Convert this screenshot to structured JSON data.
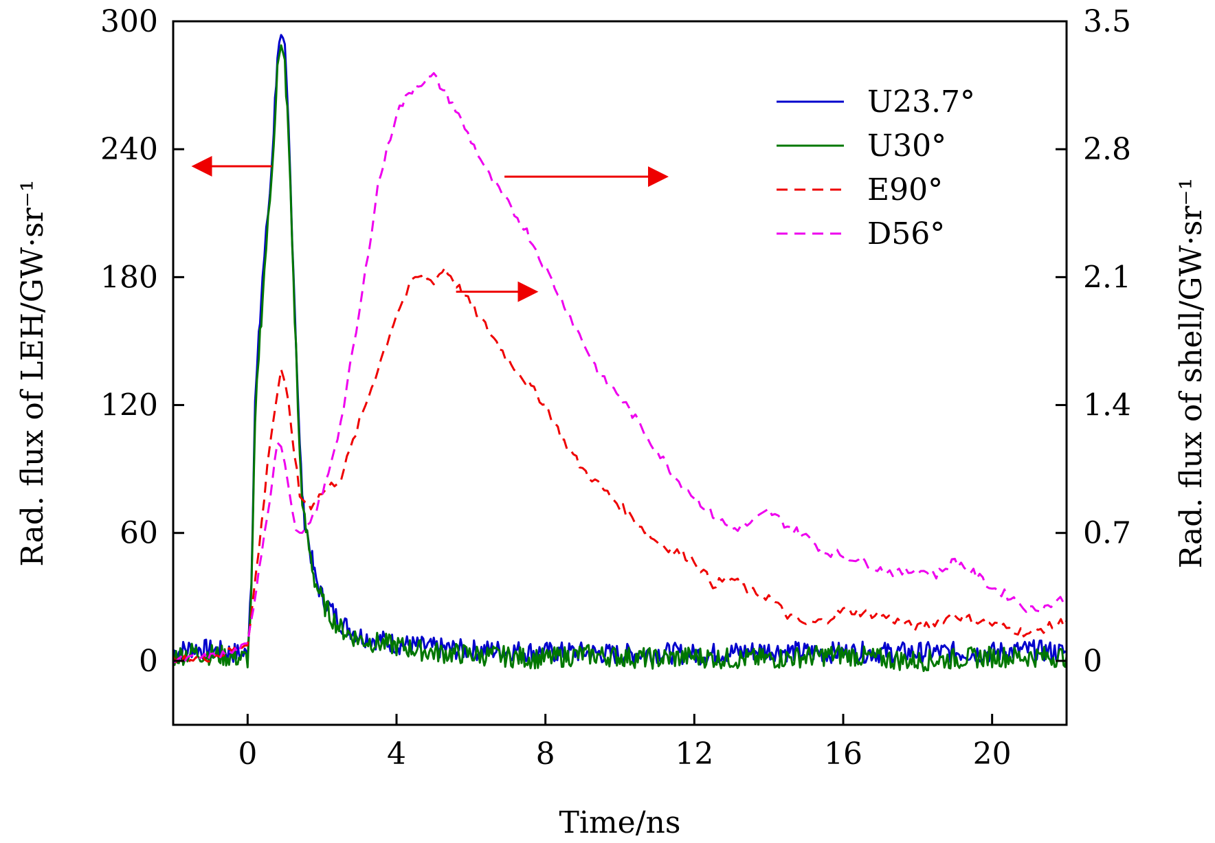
{
  "chart_data": {
    "type": "line",
    "xlabel": "Time/ns",
    "ylabel_left": "Rad. flux of LEH/GW·sr⁻¹",
    "ylabel_right": "Rad. flux of shell/GW·sr⁻¹",
    "xlim": [
      -2,
      22
    ],
    "ylim_left": [
      -30,
      300
    ],
    "ylim_right": [
      -0.35,
      3.5
    ],
    "x_ticks": [
      "0",
      "4",
      "8",
      "12",
      "16",
      "20"
    ],
    "x_tick_values": [
      0,
      4,
      8,
      12,
      16,
      20
    ],
    "y_left_ticks": [
      "0",
      "60",
      "120",
      "180",
      "240",
      "300"
    ],
    "y_left_tick_values": [
      0,
      60,
      120,
      180,
      240,
      300
    ],
    "y_right_ticks": [
      "0",
      "0.7",
      "1.4",
      "2.1",
      "2.8",
      "3.5"
    ],
    "y_right_tick_values": [
      0,
      0.7,
      1.4,
      2.1,
      2.8,
      3.5
    ],
    "legend_position": "top-right",
    "series": [
      {
        "name": "U23.7°",
        "axis": "left",
        "color": "#0000cc",
        "style": "solid",
        "x": [
          -2,
          -1.5,
          -1,
          -0.5,
          0,
          0.1,
          0.2,
          0.3,
          0.4,
          0.5,
          0.6,
          0.7,
          0.8,
          0.9,
          1.0,
          1.1,
          1.2,
          1.3,
          1.4,
          1.5,
          1.6,
          1.7,
          1.8,
          2.0,
          2.2,
          2.5,
          3,
          4,
          5,
          6,
          7,
          8,
          9,
          10,
          11,
          12,
          13,
          14,
          15,
          16,
          17,
          18,
          19,
          20,
          21,
          22
        ],
        "y": [
          4,
          6,
          5,
          4,
          3,
          40,
          120,
          150,
          180,
          200,
          220,
          250,
          285,
          290,
          285,
          250,
          200,
          150,
          100,
          70,
          60,
          50,
          40,
          30,
          25,
          18,
          12,
          8,
          6,
          5,
          5,
          4,
          4,
          3,
          4,
          3,
          4,
          5,
          4,
          4,
          4,
          4,
          4,
          4,
          5,
          4
        ]
      },
      {
        "name": "U30°",
        "axis": "left",
        "color": "#007700",
        "style": "solid",
        "x": [
          -2,
          -1.5,
          -1,
          -0.5,
          0,
          0.1,
          0.2,
          0.3,
          0.4,
          0.5,
          0.6,
          0.7,
          0.8,
          0.9,
          1.0,
          1.1,
          1.2,
          1.3,
          1.4,
          1.5,
          1.6,
          1.7,
          1.8,
          2.0,
          2.2,
          2.5,
          3,
          4,
          5,
          6,
          7,
          8,
          9,
          10,
          11,
          12,
          13,
          14,
          15,
          16,
          17,
          18,
          19,
          20,
          21,
          22
        ],
        "y": [
          2,
          4,
          3,
          2,
          1,
          30,
          110,
          145,
          170,
          195,
          215,
          245,
          278,
          286,
          280,
          245,
          195,
          145,
          95,
          68,
          58,
          48,
          38,
          28,
          22,
          15,
          10,
          7,
          4,
          3,
          2,
          1,
          3,
          2,
          1,
          2,
          1,
          1,
          2,
          3,
          1,
          0,
          1,
          2,
          2,
          2
        ]
      },
      {
        "name": "E90°",
        "axis": "right",
        "color": "#ee0000",
        "style": "dashed",
        "x": [
          -2,
          -1,
          -0.5,
          0,
          0.3,
          0.6,
          0.9,
          1.1,
          1.4,
          1.7,
          2,
          2.5,
          3,
          3.5,
          4,
          4.5,
          5,
          5.3,
          6,
          7,
          8,
          8.5,
          9,
          9.5,
          10,
          10.5,
          11,
          12,
          12.5,
          13,
          13.5,
          14,
          14.5,
          15,
          15.5,
          16,
          17,
          18,
          19,
          20,
          21,
          22
        ],
        "y": [
          0.0,
          0.02,
          0.05,
          0.1,
          0.6,
          1.2,
          1.6,
          1.4,
          0.9,
          0.85,
          0.92,
          1.0,
          1.3,
          1.6,
          1.9,
          2.1,
          2.08,
          2.15,
          1.95,
          1.65,
          1.4,
          1.2,
          1.05,
          0.95,
          0.85,
          0.75,
          0.65,
          0.55,
          0.42,
          0.45,
          0.38,
          0.35,
          0.25,
          0.2,
          0.22,
          0.28,
          0.25,
          0.18,
          0.25,
          0.2,
          0.15,
          0.22
        ]
      },
      {
        "name": "D56°",
        "axis": "right",
        "color": "#ee00ee",
        "style": "dashed",
        "x": [
          -2,
          -1,
          -0.5,
          0,
          0.3,
          0.6,
          0.8,
          1.0,
          1.2,
          1.4,
          1.6,
          2,
          2.5,
          3,
          3.5,
          4,
          4.5,
          5,
          5.5,
          6,
          6.5,
          7,
          7.5,
          8,
          8.5,
          9,
          9.5,
          10,
          10.5,
          11,
          11.5,
          12,
          12.5,
          13,
          13.5,
          14,
          14.5,
          15,
          15.5,
          16,
          16.5,
          17,
          17.5,
          18,
          18.5,
          19,
          19.5,
          20,
          20.5,
          21,
          21.5,
          22
        ],
        "y": [
          0.0,
          0.02,
          0.04,
          0.08,
          0.5,
          0.9,
          1.2,
          1.1,
          0.8,
          0.68,
          0.72,
          0.9,
          1.3,
          1.9,
          2.6,
          3.0,
          3.15,
          3.2,
          3.05,
          2.85,
          2.65,
          2.5,
          2.35,
          2.15,
          1.95,
          1.75,
          1.55,
          1.45,
          1.3,
          1.15,
          1.0,
          0.9,
          0.8,
          0.72,
          0.75,
          0.82,
          0.74,
          0.68,
          0.6,
          0.58,
          0.55,
          0.5,
          0.48,
          0.5,
          0.47,
          0.55,
          0.48,
          0.4,
          0.35,
          0.28,
          0.3,
          0.35
        ]
      }
    ],
    "annotations": [
      {
        "type": "arrow",
        "direction": "left",
        "points_to_axis": "left",
        "x_start": 0.65,
        "x_end": -1.4,
        "y_left": 232
      },
      {
        "type": "arrow",
        "direction": "right",
        "points_to_axis": "right",
        "x_start": 6.9,
        "x_end": 11.2,
        "y_right": 2.65
      },
      {
        "type": "arrow",
        "direction": "right",
        "points_to_axis": "right",
        "x_start": 5.6,
        "x_end": 7.7,
        "y_right": 2.02
      }
    ]
  }
}
